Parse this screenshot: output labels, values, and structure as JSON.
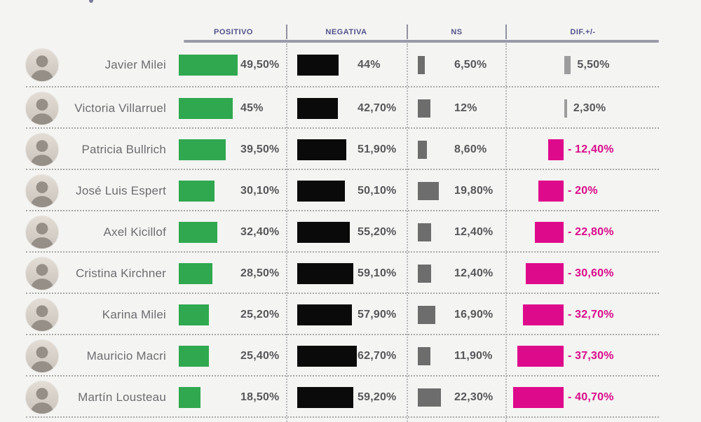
{
  "header": {
    "columns": [
      "POSITIVO",
      "NEGATIVA",
      "NS",
      "DIF.+/-"
    ]
  },
  "rows": [
    {
      "name": "Javier Milei",
      "positivo": 49.5,
      "positivo_label": "49,50%",
      "negativa": 44,
      "negativa_label": "44%",
      "ns": 6.5,
      "ns_label": "6,50%",
      "dif": 5.5,
      "dif_label": "5,50%"
    },
    {
      "name": "Victoria Villarruel",
      "positivo": 45,
      "positivo_label": "45%",
      "negativa": 42.7,
      "negativa_label": "42,70%",
      "ns": 12,
      "ns_label": "12%",
      "dif": 2.3,
      "dif_label": "2,30%"
    },
    {
      "name": "Patricia Bullrich",
      "positivo": 39.5,
      "positivo_label": "39,50%",
      "negativa": 51.9,
      "negativa_label": "51,90%",
      "ns": 8.6,
      "ns_label": "8,60%",
      "dif": -12.4,
      "dif_label": "- 12,40%"
    },
    {
      "name": "José Luis Espert",
      "positivo": 30.1,
      "positivo_label": "30,10%",
      "negativa": 50.1,
      "negativa_label": "50,10%",
      "ns": 19.8,
      "ns_label": "19,80%",
      "dif": -20,
      "dif_label": "- 20%"
    },
    {
      "name": "Axel Kicillof",
      "positivo": 32.4,
      "positivo_label": "32,40%",
      "negativa": 55.2,
      "negativa_label": "55,20%",
      "ns": 12.4,
      "ns_label": "12,40%",
      "dif": -22.8,
      "dif_label": "- 22,80%"
    },
    {
      "name": "Cristina Kirchner",
      "positivo": 28.5,
      "positivo_label": "28,50%",
      "negativa": 59.1,
      "negativa_label": "59,10%",
      "ns": 12.4,
      "ns_label": "12,40%",
      "dif": -30.6,
      "dif_label": "- 30,60%"
    },
    {
      "name": "Karina Milei",
      "positivo": 25.2,
      "positivo_label": "25,20%",
      "negativa": 57.9,
      "negativa_label": "57,90%",
      "ns": 16.9,
      "ns_label": "16,90%",
      "dif": -32.7,
      "dif_label": "- 32,70%"
    },
    {
      "name": "Mauricio Macri",
      "positivo": 25.4,
      "positivo_label": "25,40%",
      "negativa": 62.7,
      "negativa_label": "62,70%",
      "ns": 11.9,
      "ns_label": "11,90%",
      "dif": -37.3,
      "dif_label": "- 37,30%"
    },
    {
      "name": "Martín Lousteau",
      "positivo": 18.5,
      "positivo_label": "18,50%",
      "negativa": 59.2,
      "negativa_label": "59,20%",
      "ns": 22.3,
      "ns_label": "22,30%",
      "dif": -40.7,
      "dif_label": "- 40,70%"
    }
  ],
  "colors": {
    "positivo_bar": "#2fa84f",
    "negativa_bar": "#0a0a0a",
    "ns_bar": "#6d6d6d",
    "dif_positive_bar": "#9c9c9e",
    "dif_negative_bar": "#de0a8c",
    "dif_negative_text": "#d90b8a",
    "header_text": "#52528c",
    "value_text": "#57575b",
    "name_text": "#6d6d72",
    "crop_mark": "#7a7aa0"
  },
  "chart_data": {
    "type": "bar",
    "title": "",
    "categories": [
      "Javier Milei",
      "Victoria Villarruel",
      "Patricia Bullrich",
      "José Luis Espert",
      "Axel Kicillof",
      "Cristina Kirchner",
      "Karina Milei",
      "Mauricio Macri",
      "Martín Lousteau"
    ],
    "series": [
      {
        "name": "POSITIVO",
        "values": [
          49.5,
          45,
          39.5,
          30.1,
          32.4,
          28.5,
          25.2,
          25.4,
          18.5
        ],
        "labels": [
          "49,50%",
          "45%",
          "39,50%",
          "30,10%",
          "32,40%",
          "28,50%",
          "25,20%",
          "25,40%",
          "18,50%"
        ],
        "color": "#2fa84f"
      },
      {
        "name": "NEGATIVA",
        "values": [
          44,
          42.7,
          51.9,
          50.1,
          55.2,
          59.1,
          57.9,
          62.7,
          59.2
        ],
        "labels": [
          "44%",
          "42,70%",
          "51,90%",
          "50,10%",
          "55,20%",
          "59,10%",
          "57,90%",
          "62,70%",
          "59,20%"
        ],
        "color": "#0a0a0a"
      },
      {
        "name": "NS",
        "values": [
          6.5,
          12,
          8.6,
          19.8,
          12.4,
          12.4,
          16.9,
          11.9,
          22.3
        ],
        "labels": [
          "6,50%",
          "12%",
          "8,60%",
          "19,80%",
          "12,40%",
          "12,40%",
          "16,90%",
          "11,90%",
          "22,30%"
        ],
        "color": "#6d6d6d"
      },
      {
        "name": "DIF.+/-",
        "values": [
          5.5,
          2.3,
          -12.4,
          -20,
          -22.8,
          -30.6,
          -32.7,
          -37.3,
          -40.7
        ],
        "labels": [
          "5,50%",
          "2,30%",
          "- 12,40%",
          "- 20%",
          "- 22,80%",
          "- 30,60%",
          "- 32,70%",
          "- 37,30%",
          "- 40,70%"
        ],
        "color_positive": "#9c9c9e",
        "color_negative": "#de0a8c"
      }
    ],
    "orientation": "horizontal",
    "layout": "table of horizontal bars, one row per person, photo avatar + name at left, four value columns separated by dotted lines, DIF bars diverge from a fixed axis (negatives grow left in magenta, positives grow right in gray)",
    "grid": false,
    "legend_position": "column headers on top"
  }
}
